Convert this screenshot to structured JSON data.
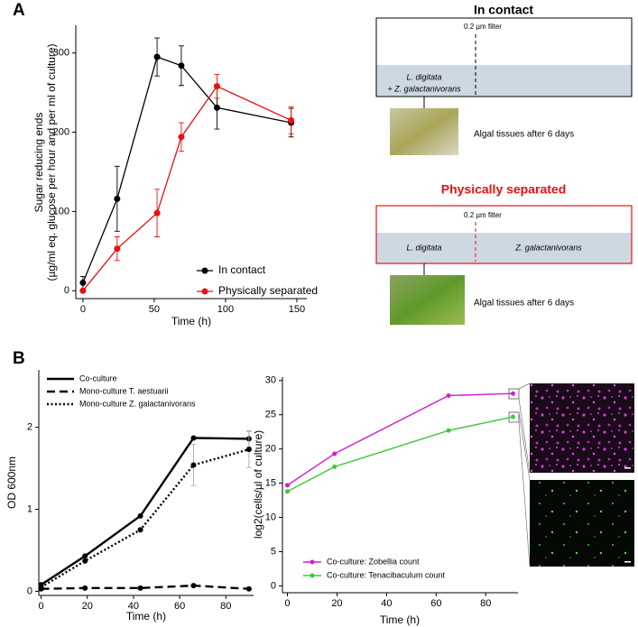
{
  "panels": {
    "a": "A",
    "b": "B"
  },
  "chart_data": [
    {
      "type": "line",
      "y_label": [
        "Sugar reducing ends",
        "(µg/ml eq. glucose per hour and per ml of culture)"
      ],
      "x_label": "Time (h)",
      "x": [
        0,
        24,
        52,
        69,
        94,
        146
      ],
      "series": [
        {
          "name": "In contact",
          "color": "#000000",
          "dash": "solid",
          "values": [
            10,
            116,
            295,
            284,
            231,
            212
          ],
          "errors": [
            8,
            41,
            24,
            25,
            27,
            18
          ]
        },
        {
          "name": "Physically separated",
          "color": "#e8110f",
          "dash": "solid",
          "values": [
            0,
            53,
            98,
            194,
            258,
            215
          ],
          "errors": [
            null,
            15,
            30,
            18,
            15,
            17
          ]
        }
      ],
      "xlim": [
        -5,
        157
      ],
      "ylim": [
        -10,
        335
      ],
      "xticks": [
        0,
        50,
        100,
        150
      ],
      "yticks": [
        0,
        100,
        200,
        300
      ],
      "legend": "lower right",
      "markers": true
    },
    {
      "type": "line",
      "y_label": "OD 600nm",
      "x_label": "Time (h)",
      "x": [
        0,
        19,
        43,
        66,
        90
      ],
      "series": [
        {
          "name": "Co-culture",
          "color": "#000000",
          "dash": "solid",
          "values": [
            0.08,
            0.43,
            0.92,
            1.87,
            1.86
          ],
          "errors": [
            null,
            null,
            null,
            null,
            0.1
          ]
        },
        {
          "name": "Mono-culture T. aestuarii",
          "color": "#000000",
          "dash": "dashed",
          "values": [
            0.03,
            0.04,
            0.04,
            0.07,
            0.03
          ],
          "errors": [
            null,
            null,
            null,
            null,
            null
          ]
        },
        {
          "name": "Mono-culture Z. galactanivorans",
          "color": "#000000",
          "dash": "dotted",
          "values": [
            0.05,
            0.37,
            0.75,
            1.54,
            1.73
          ],
          "errors": [
            null,
            null,
            null,
            0.25,
            0.22
          ]
        }
      ],
      "xlim": [
        -1,
        92
      ],
      "ylim": [
        -0.05,
        2.7
      ],
      "xticks": [
        0,
        20,
        40,
        60,
        80
      ],
      "yticks": [
        0,
        1,
        2
      ],
      "legend": "upper left",
      "markers": true,
      "error_color": "#aaaaaa"
    },
    {
      "type": "line",
      "y_label": "log2(cells/µl of culture)",
      "x_label": "Time (h)",
      "x": [
        0,
        19,
        65,
        91
      ],
      "series": [
        {
          "name": "Co-culture: Zobellia count",
          "color": "#d21fd2",
          "dash": "solid",
          "values": [
            14.7,
            19.3,
            27.8,
            28.1
          ]
        },
        {
          "name": "Co-culture: Tenacibaculum count",
          "color": "#3cc83c",
          "dash": "solid",
          "values": [
            13.8,
            17.4,
            22.7,
            24.7
          ]
        }
      ],
      "xlim": [
        -2,
        93
      ],
      "ylim": [
        -1,
        30.5
      ],
      "xticks": [
        0,
        20,
        40,
        60,
        80
      ],
      "yticks": [
        0,
        5,
        10,
        15,
        20,
        25,
        30
      ],
      "legend": "lower left",
      "markers": true
    }
  ],
  "diagrams": [
    {
      "title": "In contact",
      "filter": "0.2 µm filter",
      "labels": [
        "L. digitata",
        "+ Z. galactanivorans"
      ],
      "caption": "Algal tissues after 6 days"
    },
    {
      "title": "Physically separated",
      "filter": "0.2 µm filter",
      "labels": [
        "L. digitata",
        "Z. galactanivorans"
      ],
      "caption": "Algal tissues after 6 days"
    }
  ]
}
